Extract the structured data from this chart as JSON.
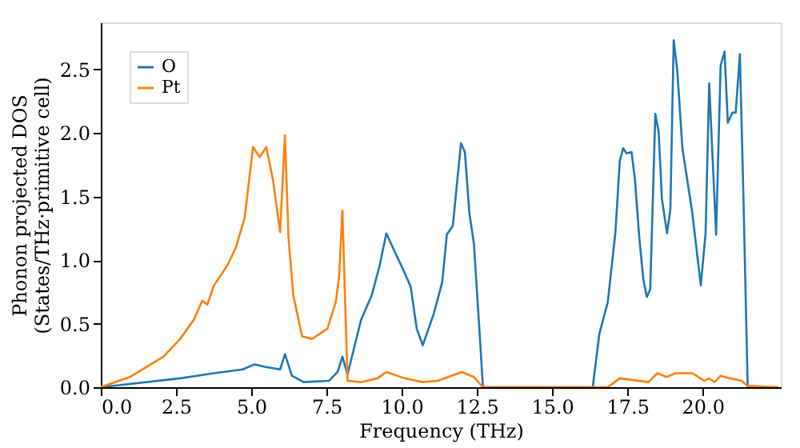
{
  "chart_data": {
    "type": "line",
    "xlabel": "Frequency (THz)",
    "ylabel": "Phonon projected DOS\n(States/THz·primitive cell)",
    "xlim": [
      0,
      22.6
    ],
    "ylim": [
      0,
      2.87
    ],
    "xticks": [
      {
        "value": 0,
        "label": "0.0"
      },
      2.5,
      {
        "value": 5,
        "label": "5.0"
      },
      7.5,
      {
        "value": 10,
        "label": "10.0"
      },
      12.5,
      {
        "value": 15,
        "label": "15.0"
      },
      17.5,
      {
        "value": 20,
        "label": "20.0"
      }
    ],
    "yticks": [
      {
        "value": 0,
        "label": "0.0"
      },
      0.5,
      {
        "value": 1,
        "label": "1.0"
      },
      1.5,
      {
        "value": 2,
        "label": "2.0"
      },
      2.5
    ],
    "grid": false,
    "legend": "top left",
    "line_style": "solid",
    "marker": "none",
    "series": [
      {
        "name": "O",
        "color": "#1f77b4",
        "x": [
          0,
          2.64,
          3.76,
          4.72,
          5.11,
          5.45,
          5.96,
          6.12,
          6.35,
          6.74,
          7.58,
          7.87,
          8.03,
          8.2,
          8.65,
          9.0,
          9.27,
          9.49,
          9.78,
          10.06,
          10.3,
          10.5,
          10.7,
          11.07,
          11.35,
          11.5,
          11.7,
          11.97,
          12.1,
          12.25,
          12.4,
          12.6,
          12.7,
          16.35,
          16.57,
          16.85,
          17.1,
          17.25,
          17.36,
          17.47,
          17.64,
          17.75,
          17.9,
          18.03,
          18.15,
          18.26,
          18.43,
          18.54,
          18.65,
          18.82,
          18.93,
          19.04,
          19.16,
          19.33,
          19.66,
          19.94,
          20.1,
          20.22,
          20.45,
          20.6,
          20.73,
          20.84,
          20.99,
          21.1,
          21.24,
          21.35,
          21.5,
          22.5
        ],
        "values": [
          0,
          0.07,
          0.11,
          0.14,
          0.18,
          0.16,
          0.14,
          0.26,
          0.09,
          0.04,
          0.05,
          0.12,
          0.24,
          0.1,
          0.53,
          0.72,
          0.96,
          1.21,
          1.06,
          0.92,
          0.79,
          0.46,
          0.33,
          0.58,
          0.83,
          1.2,
          1.27,
          1.92,
          1.85,
          1.37,
          1.13,
          0.39,
          0,
          0,
          0.42,
          0.67,
          1.21,
          1.78,
          1.88,
          1.84,
          1.85,
          1.64,
          1.17,
          0.85,
          0.71,
          0.77,
          2.15,
          2.01,
          1.48,
          1.21,
          1.4,
          2.73,
          2.49,
          1.88,
          1.37,
          0.8,
          1.21,
          2.39,
          1.2,
          2.53,
          2.64,
          2.08,
          2.16,
          2.16,
          2.62,
          1.58,
          0,
          0
        ]
      },
      {
        "name": "Pt",
        "color": "#ff7f0e",
        "x": [
          0,
          0.96,
          2.08,
          2.64,
          3.09,
          3.37,
          3.54,
          3.76,
          4.21,
          4.49,
          4.78,
          5.06,
          5.28,
          5.5,
          5.73,
          5.96,
          6.12,
          6.24,
          6.4,
          6.69,
          7.02,
          7.53,
          7.81,
          7.92,
          8.03,
          8.2,
          8.65,
          9.2,
          9.49,
          10.1,
          10.7,
          11.2,
          12.0,
          12.4,
          12.7,
          16.85,
          17.25,
          18.2,
          18.5,
          18.8,
          19.1,
          19.66,
          20.06,
          20.2,
          20.4,
          20.6,
          20.9,
          21.3,
          21.5,
          22.5
        ],
        "values": [
          0,
          0.08,
          0.24,
          0.38,
          0.53,
          0.68,
          0.65,
          0.8,
          0.96,
          1.1,
          1.33,
          1.89,
          1.81,
          1.89,
          1.62,
          1.22,
          1.98,
          1.17,
          0.72,
          0.4,
          0.38,
          0.46,
          0.67,
          0.87,
          1.39,
          0.05,
          0.04,
          0.07,
          0.12,
          0.07,
          0.04,
          0.05,
          0.12,
          0.08,
          0,
          0,
          0.07,
          0.04,
          0.11,
          0.08,
          0.11,
          0.11,
          0.05,
          0.07,
          0.04,
          0.09,
          0.07,
          0.05,
          0.01,
          0
        ]
      }
    ]
  }
}
